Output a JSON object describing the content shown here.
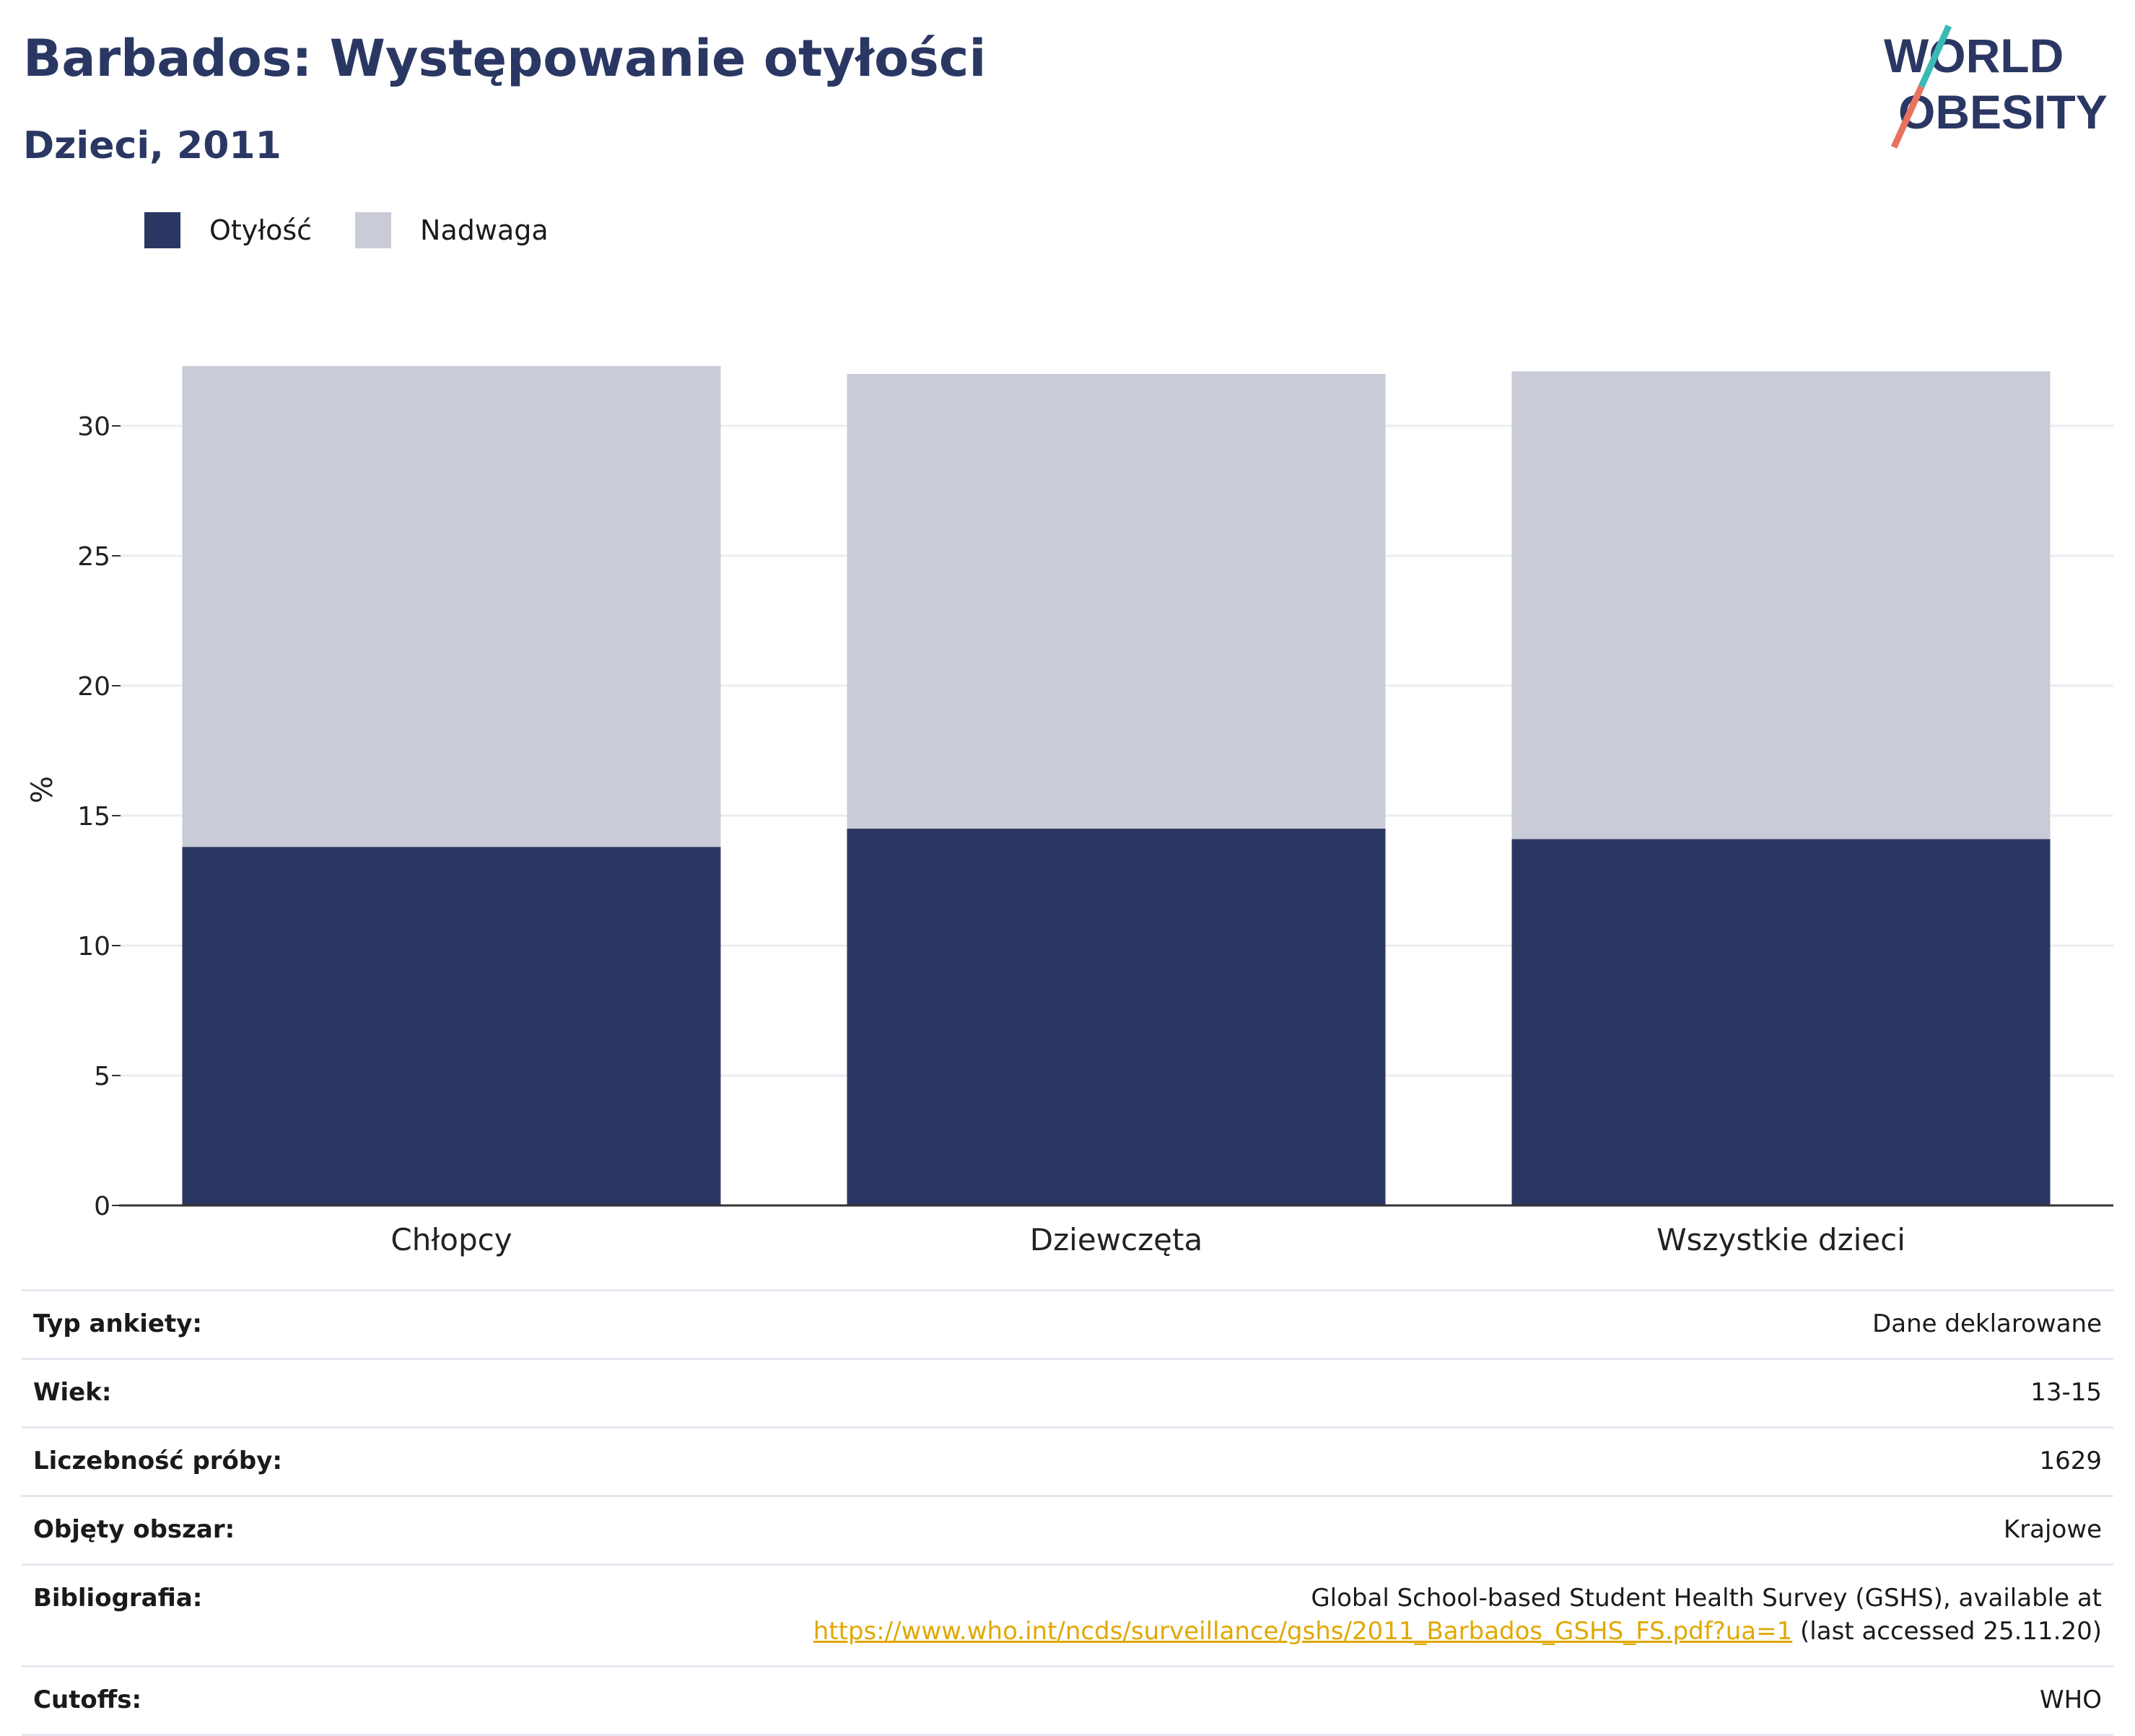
{
  "header": {
    "title": "Barbados: Występowanie otyłości",
    "subtitle": "Dzieci, 2011"
  },
  "logo": {
    "line1": "WORLD",
    "line2": "OBESITY",
    "accent_teal": "#3bb9b5",
    "accent_coral": "#e8735f"
  },
  "colors": {
    "obesity": "#2b3763",
    "overweight": "#c9cbd6",
    "text_dark": "#2b3763"
  },
  "legend": [
    {
      "label": "Otyłość",
      "color": "#2b3763"
    },
    {
      "label": "Nadwaga",
      "color": "#c9cbd6"
    }
  ],
  "chart_data": {
    "type": "bar",
    "stacked": true,
    "categories": [
      "Chłopcy",
      "Dziewczęta",
      "Wszystkie dzieci"
    ],
    "series": [
      {
        "name": "Otyłość",
        "values": [
          13.8,
          14.5,
          14.1
        ]
      },
      {
        "name": "Nadwaga",
        "values": [
          18.5,
          17.5,
          18.0
        ]
      }
    ],
    "ylabel": "%",
    "ylim": [
      0,
      32.5
    ],
    "yticks": [
      0,
      5,
      10,
      15,
      20,
      25,
      30
    ],
    "grid": true,
    "legend_position": "top-left"
  },
  "info": [
    {
      "label": "Typ ankiety:",
      "value": "Dane deklarowane"
    },
    {
      "label": "Wiek:",
      "value": "13-15"
    },
    {
      "label": "Liczebność próby:",
      "value": "1629"
    },
    {
      "label": "Objęty obszar:",
      "value": "Krajowe"
    },
    {
      "label": "Bibliografia:",
      "value_line1": "Global School-based Student Health Survey (GSHS), available at",
      "link": "https://www.who.int/ncds/surveillance/gshs/2011_Barbados_GSHS_FS.pdf?ua=1",
      "value_suffix": " (last accessed 25.11.20)"
    },
    {
      "label": "Cutoffs:",
      "value": "WHO"
    }
  ]
}
